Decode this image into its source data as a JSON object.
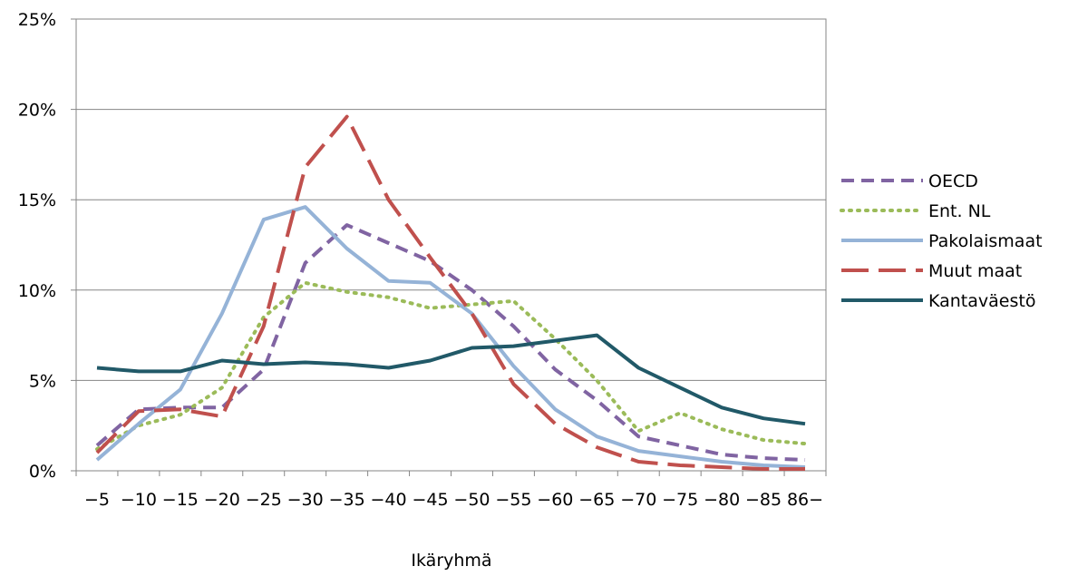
{
  "chart_data": {
    "type": "line",
    "title": "",
    "xlabel": "Ikäryhmä",
    "ylabel": "",
    "categories": [
      "−5",
      "−10",
      "−15",
      "−20",
      "−25",
      "−30",
      "−35",
      "−40",
      "−45",
      "−50",
      "−55",
      "−60",
      "−65",
      "−70",
      "−75",
      "−80",
      "−85",
      "86−"
    ],
    "ylim": [
      0,
      25
    ],
    "yticks": [
      "0%",
      "5%",
      "10%",
      "15%",
      "20%",
      "25%"
    ],
    "grid": "horizontal",
    "legend_position": "right",
    "series": [
      {
        "name": "OECD",
        "style": "dashed",
        "color": "#8064a2",
        "values": [
          1.4,
          3.4,
          3.5,
          3.5,
          5.6,
          11.5,
          13.6,
          12.6,
          11.6,
          10.0,
          8.0,
          5.6,
          3.9,
          1.9,
          1.4,
          0.9,
          0.7,
          0.6
        ]
      },
      {
        "name": "Ent. NL",
        "style": "dotted",
        "color": "#9bbb59",
        "values": [
          1.2,
          2.5,
          3.1,
          4.6,
          8.5,
          10.4,
          9.9,
          9.6,
          9.0,
          9.2,
          9.4,
          7.3,
          5.0,
          2.2,
          3.2,
          2.3,
          1.7,
          1.5
        ]
      },
      {
        "name": "Pakolaismaat",
        "style": "solid",
        "color": "#95b3d7",
        "values": [
          0.6,
          2.6,
          4.5,
          8.7,
          13.9,
          14.6,
          12.3,
          10.5,
          10.4,
          8.7,
          5.8,
          3.4,
          1.9,
          1.1,
          0.8,
          0.5,
          0.3,
          0.2
        ]
      },
      {
        "name": "Muut maat",
        "style": "longdash",
        "color": "#c0504d",
        "values": [
          1.0,
          3.3,
          3.4,
          3.0,
          8.0,
          16.8,
          19.6,
          15.0,
          11.8,
          8.7,
          4.8,
          2.6,
          1.3,
          0.5,
          0.3,
          0.2,
          0.1,
          0.1
        ]
      },
      {
        "name": "Kantaväestö",
        "style": "solid",
        "color": "#215968",
        "values": [
          5.7,
          5.5,
          5.5,
          6.1,
          5.9,
          6.0,
          5.9,
          5.7,
          6.1,
          6.8,
          6.9,
          7.2,
          7.5,
          5.7,
          4.6,
          3.5,
          2.9,
          2.6
        ]
      }
    ]
  }
}
